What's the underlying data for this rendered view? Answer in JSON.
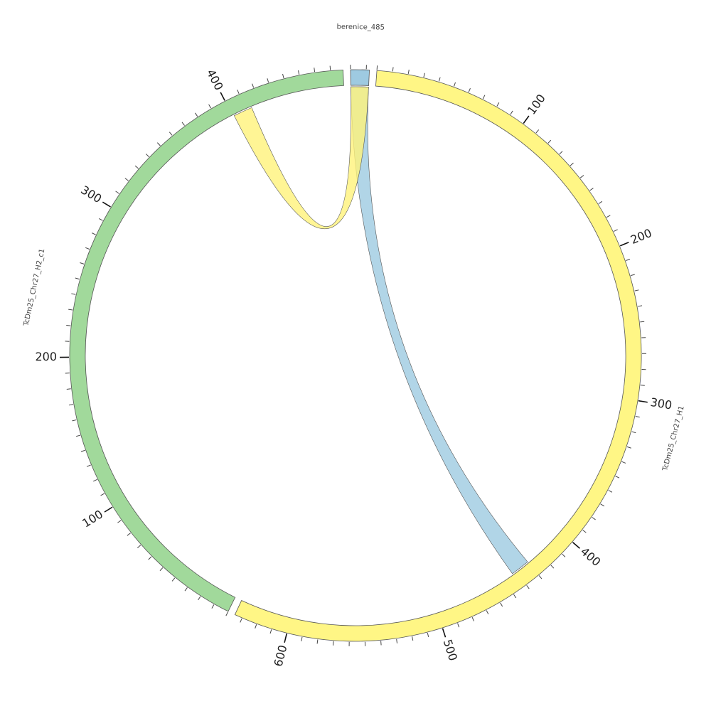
{
  "chart_data": {
    "type": "chord",
    "sectors": [
      {
        "name": "berenice_485",
        "length": 12,
        "color": "#9ecae1"
      },
      {
        "name": "TcDm25_Chr27_H1",
        "length": 635,
        "color": "#fff685",
        "major_ticks": [
          100,
          200,
          300,
          400,
          500,
          600
        ]
      },
      {
        "name": "TcDm25_Chr27_H2_c1",
        "length": 478,
        "color": "#a1d99b",
        "major_ticks": [
          100,
          200,
          300,
          400
        ]
      }
    ],
    "minor_tick_step": 10,
    "links": [
      {
        "from": "berenice_485",
        "from_range": [
          0,
          12
        ],
        "to": "TcDm25_Chr27_H1",
        "to_range": [
          430,
          443
        ],
        "color": "#9ecae1"
      },
      {
        "from": "berenice_485",
        "from_range": [
          0,
          12
        ],
        "to": "TcDm25_Chr27_H2_c1",
        "to_range": [
          401,
          414
        ],
        "color": "#fff27a"
      }
    ]
  }
}
